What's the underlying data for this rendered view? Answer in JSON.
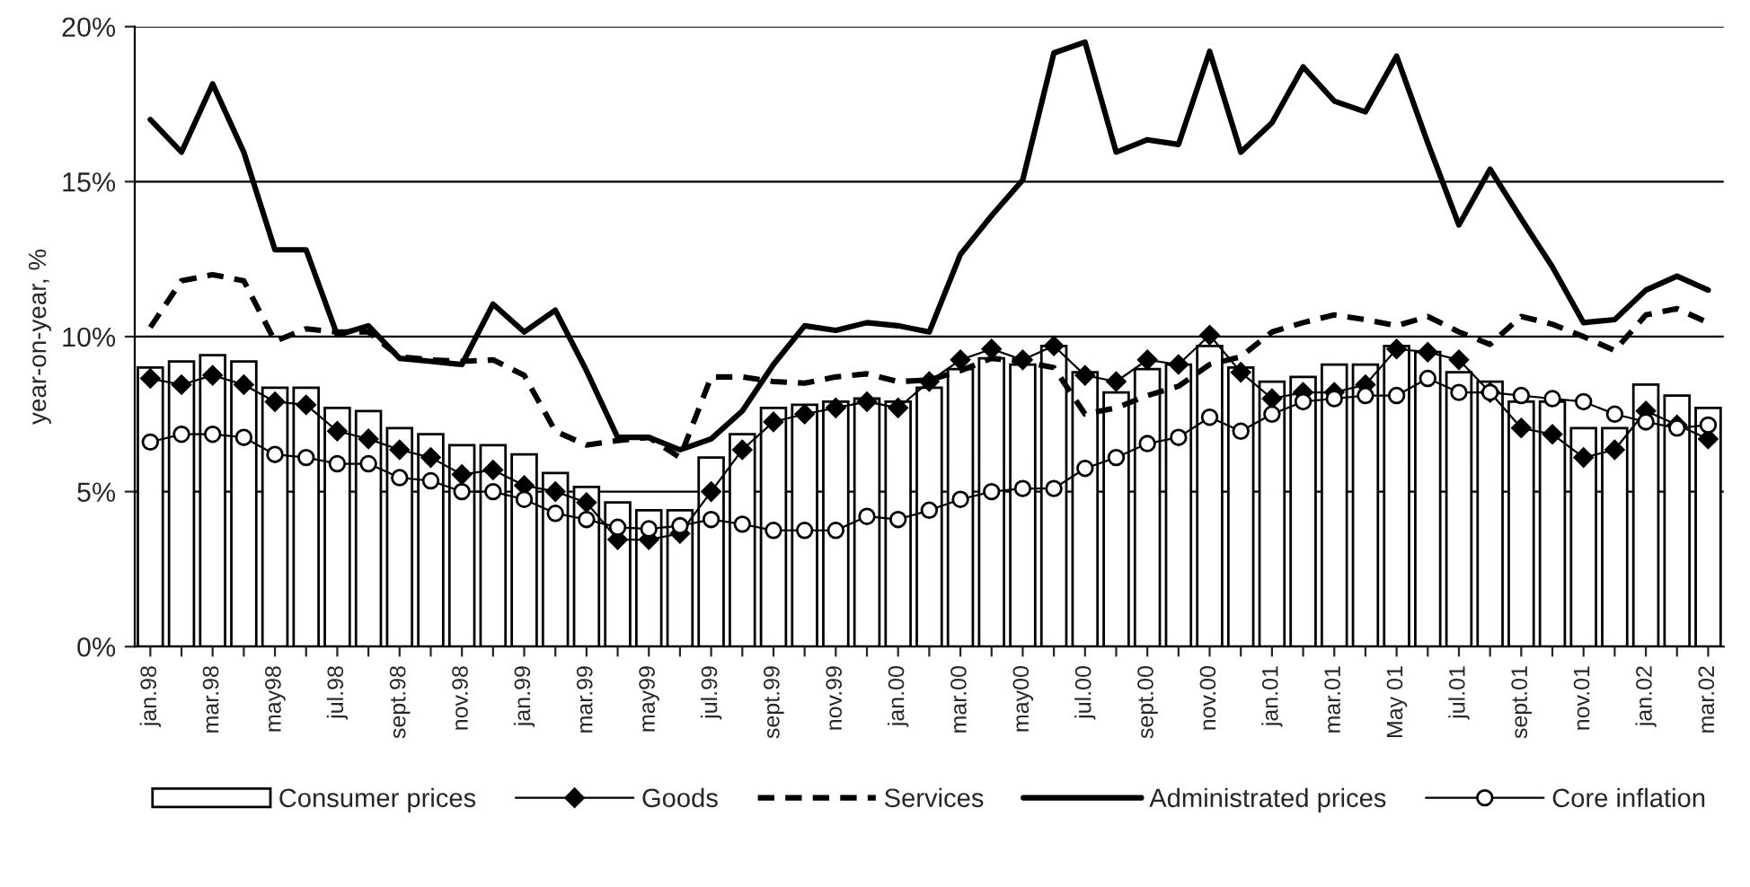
{
  "chart_data": {
    "type": "bar",
    "ylabel": "year-on-year, %",
    "categories": [
      "jan.98",
      null,
      "mar.98",
      null,
      "may98",
      null,
      "jul.98",
      null,
      "sept.98",
      null,
      "nov.98",
      null,
      "jan.99",
      null,
      "mar.99",
      null,
      "may99",
      null,
      "jul.99",
      null,
      "sept.99",
      null,
      "nov.99",
      null,
      "jan.00",
      null,
      "mar.00",
      null,
      "may00",
      null,
      "jul.00",
      null,
      "sept.00",
      null,
      "nov.00",
      null,
      "jan.01",
      null,
      "mar.01",
      null,
      "May 01",
      null,
      "jul.01",
      null,
      "sept.01",
      null,
      "nov.01",
      null,
      "jan.02",
      null,
      "mar.02"
    ],
    "series": [
      {
        "name": "Consumer prices",
        "color": "#ffffff",
        "values": [
          9.0,
          9.2,
          9.4,
          9.2,
          8.35,
          8.35,
          7.7,
          7.6,
          7.05,
          6.85,
          6.5,
          6.5,
          6.2,
          5.6,
          5.15,
          4.65,
          4.4,
          4.4,
          6.1,
          6.85,
          7.7,
          7.8,
          7.9,
          8.0,
          7.9,
          8.35,
          8.95,
          9.3,
          9.1,
          9.7,
          8.85,
          8.2,
          8.95,
          9.1,
          9.7,
          9.0,
          8.55,
          8.7,
          9.1,
          9.1,
          9.7,
          9.5,
          8.85,
          8.55,
          7.9,
          7.9,
          7.05,
          7.05,
          8.45,
          8.1,
          7.7
        ]
      },
      {
        "name": "Goods",
        "type": "line",
        "color": "#000000",
        "marker": "diamond",
        "line_style": "solid",
        "values": [
          8.65,
          8.45,
          8.75,
          8.45,
          7.9,
          7.8,
          6.95,
          6.7,
          6.35,
          6.1,
          5.55,
          5.7,
          5.2,
          5.0,
          4.65,
          3.45,
          3.45,
          3.65,
          5.0,
          6.35,
          7.25,
          7.5,
          7.7,
          7.9,
          7.7,
          8.55,
          9.25,
          9.6,
          9.25,
          9.7,
          8.75,
          8.55,
          9.25,
          9.1,
          10.05,
          8.85,
          8.0,
          8.2,
          8.2,
          8.45,
          9.6,
          9.5,
          9.25,
          8.2,
          7.05,
          6.85,
          6.1,
          6.35,
          7.6,
          7.15,
          6.7
        ]
      },
      {
        "name": "Services",
        "type": "line",
        "color": "#000000",
        "marker": "none",
        "line_style": "dashed",
        "values": [
          10.3,
          11.8,
          12.0,
          11.8,
          9.85,
          10.25,
          10.15,
          10.15,
          9.35,
          9.25,
          9.2,
          9.25,
          8.75,
          6.95,
          6.5,
          6.65,
          6.75,
          6.1,
          8.7,
          8.7,
          8.55,
          8.5,
          8.7,
          8.8,
          8.55,
          8.6,
          8.9,
          9.3,
          9.2,
          9.0,
          7.5,
          7.7,
          8.1,
          8.4,
          9.1,
          9.35,
          10.15,
          10.45,
          10.7,
          10.55,
          10.35,
          10.65,
          10.15,
          9.75,
          10.65,
          10.4,
          10.0,
          9.55,
          10.7,
          10.9,
          10.45
        ]
      },
      {
        "name": "Administrated prices",
        "type": "line",
        "color": "#000000",
        "marker": "none",
        "line_style": "solid",
        "values": [
          17.0,
          15.95,
          18.15,
          15.95,
          12.8,
          12.8,
          10.05,
          10.35,
          9.3,
          9.2,
          9.1,
          11.05,
          10.15,
          10.85,
          8.9,
          6.75,
          6.75,
          6.35,
          6.7,
          7.6,
          9.1,
          10.35,
          10.2,
          10.45,
          10.35,
          10.15,
          12.65,
          13.9,
          15.05,
          19.15,
          19.5,
          15.95,
          16.35,
          16.2,
          19.2,
          15.95,
          16.9,
          18.7,
          17.6,
          17.25,
          19.05,
          16.25,
          13.6,
          15.4,
          13.8,
          12.25,
          10.45,
          10.55,
          11.5,
          11.95,
          11.5
        ]
      },
      {
        "name": "Core inflation",
        "type": "line",
        "color": "#000000",
        "marker": "circle",
        "line_style": "solid",
        "values": [
          6.6,
          6.85,
          6.85,
          6.75,
          6.2,
          6.1,
          5.9,
          5.9,
          5.45,
          5.35,
          5.0,
          5.0,
          4.75,
          4.3,
          4.1,
          3.85,
          3.8,
          3.9,
          4.1,
          3.95,
          3.75,
          3.75,
          3.75,
          4.2,
          4.1,
          4.4,
          4.75,
          5.0,
          5.1,
          5.1,
          5.75,
          6.1,
          6.55,
          6.75,
          7.4,
          6.95,
          7.5,
          7.9,
          8.0,
          8.1,
          8.1,
          8.65,
          8.2,
          8.2,
          8.1,
          8.0,
          7.9,
          7.5,
          7.25,
          7.05,
          7.15
        ]
      }
    ],
    "ylim": [
      0,
      20
    ],
    "yticks": [
      {
        "value": 0,
        "label": "0%"
      },
      {
        "value": 5,
        "label": "5%"
      },
      {
        "value": 10,
        "label": "10%"
      },
      {
        "value": 15,
        "label": "15%"
      },
      {
        "value": 20,
        "label": "20%"
      }
    ],
    "grid": "y",
    "legend": "bottom"
  }
}
